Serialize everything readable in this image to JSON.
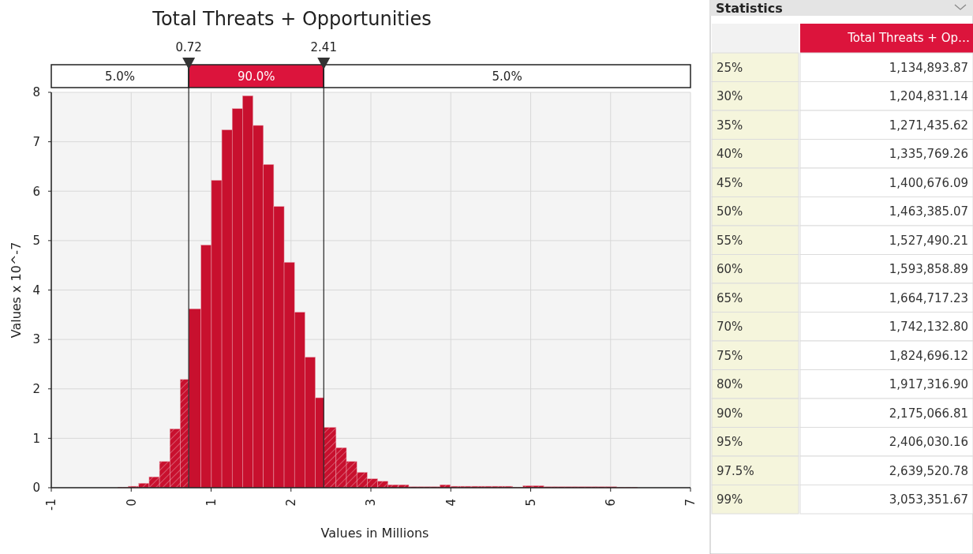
{
  "chart_data": [
    {
      "type": "histogram",
      "title": "Total Threats + Opportunities",
      "xlabel": "Values in Millions",
      "ylabel": "Values x 10^-7",
      "color": "#c8102e",
      "bins": [
        -0.166,
        -0.036,
        0.094,
        0.224,
        0.354,
        0.484,
        0.614,
        0.72,
        0.874,
        1.004,
        1.134,
        1.264,
        1.394,
        1.524,
        1.654,
        1.784,
        1.914,
        2.044,
        2.174,
        2.304,
        2.41,
        2.564,
        2.694,
        2.824,
        2.954,
        3.084,
        3.214,
        3.344,
        3.474,
        3.604,
        3.734,
        3.864,
        3.994,
        4.124,
        4.254,
        4.384,
        4.514,
        4.644,
        4.774,
        4.904,
        5.034,
        5.164,
        5.294,
        5.424,
        5.554,
        5.684,
        5.814,
        5.944,
        6.074,
        6.204,
        6.334
      ],
      "values": [
        0.01,
        0.03,
        0.09,
        0.22,
        0.53,
        1.19,
        2.19,
        3.62,
        4.91,
        6.22,
        7.24,
        7.67,
        7.93,
        7.33,
        6.54,
        5.69,
        4.56,
        3.55,
        2.64,
        1.82,
        1.22,
        0.81,
        0.53,
        0.31,
        0.18,
        0.13,
        0.06,
        0.06,
        0.02,
        0.02,
        0.02,
        0.06,
        0.03,
        0.03,
        0.03,
        0.03,
        0.03,
        0.03,
        0.01,
        0.04,
        0.04,
        0.02,
        0.02,
        0.02,
        0.02,
        0.02,
        0.02,
        0.02,
        0.01,
        0.01
      ],
      "xlim": [
        -1,
        7
      ],
      "xticks": [
        -1,
        0,
        1,
        2,
        3,
        4,
        5,
        6,
        7
      ],
      "ylim": [
        0,
        8
      ],
      "yticks": [
        0,
        1,
        2,
        3,
        4,
        5,
        6,
        7,
        8
      ],
      "grid": true,
      "ref_lines": [
        {
          "axis": "x",
          "value": 0.72,
          "label": "0.72"
        },
        {
          "axis": "x",
          "value": 2.41,
          "label": "2.41"
        }
      ],
      "annotations": [
        "5.0%",
        "90.0%",
        "5.0%"
      ]
    },
    {
      "type": "other",
      "title": "Statistics",
      "annotations": [
        "Total Threats + Op…"
      ],
      "categories": [
        "25%",
        "30%",
        "35%",
        "40%",
        "45%",
        "50%",
        "55%",
        "60%",
        "65%",
        "70%",
        "75%",
        "80%",
        "90%",
        "95%",
        "97.5%",
        "99%"
      ],
      "value_labels": [
        "1,134,893.87",
        "1,204,831.14",
        "1,271,435.62",
        "1,335,769.26",
        "1,400,676.09",
        "1,463,385.07",
        "1,527,490.21",
        "1,593,858.89",
        "1,664,717.23",
        "1,742,132.80",
        "1,824,696.12",
        "1,917,316.90",
        "2,175,066.81",
        "2,406,030.16",
        "2,639,520.78",
        "3,053,351.67"
      ]
    }
  ]
}
